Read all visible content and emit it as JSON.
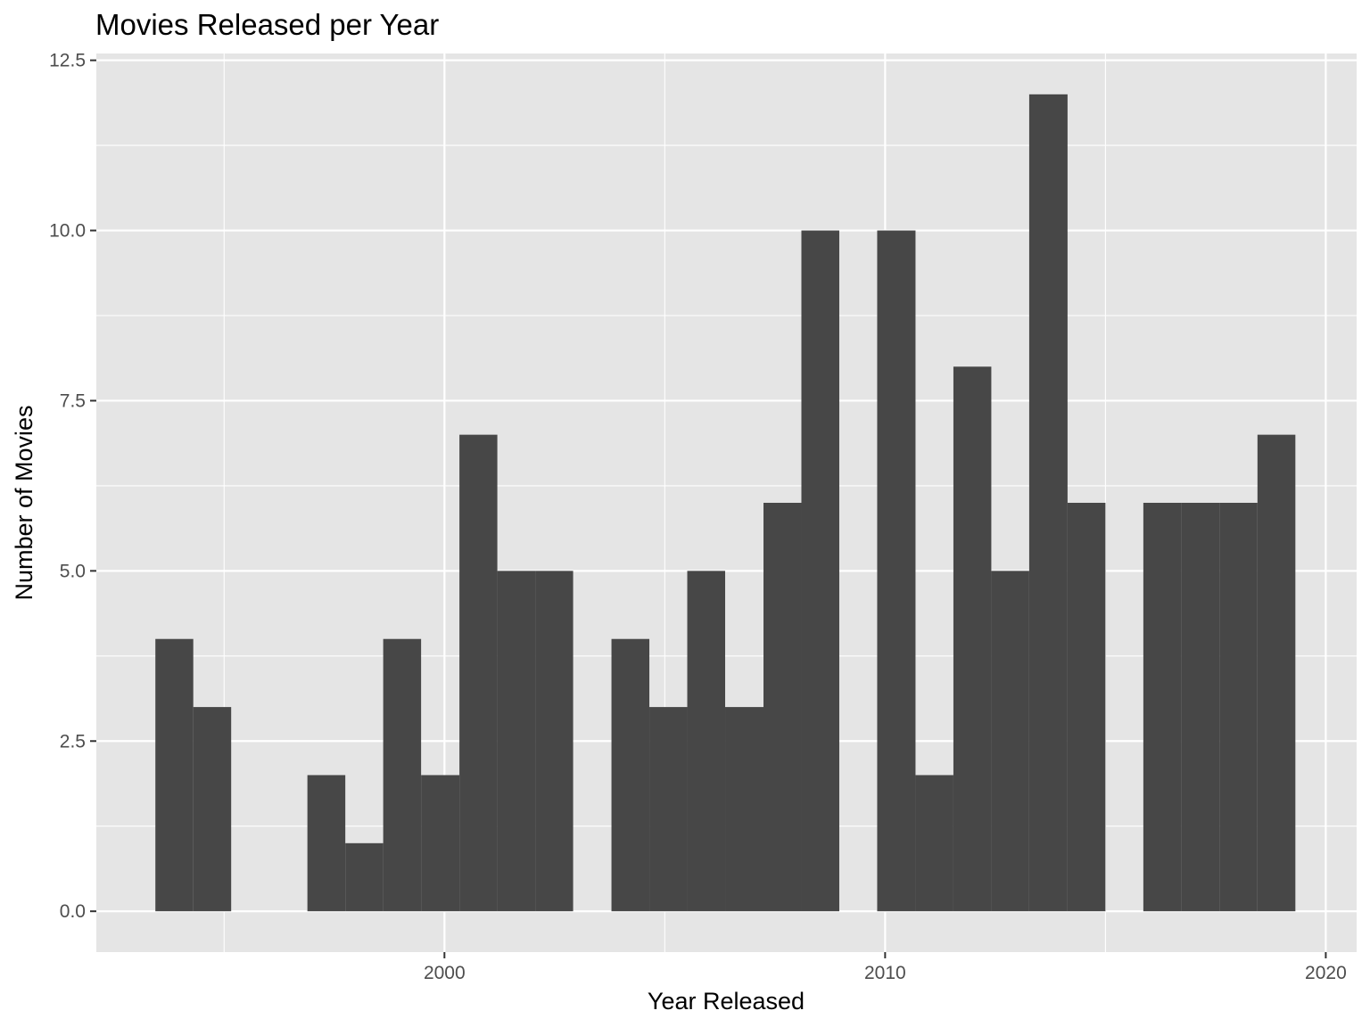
{
  "chart_data": {
    "type": "histogram",
    "title": "Movies Released per Year",
    "xlabel": "Year Released",
    "ylabel": "Number of Movies",
    "x_range": [
      1992.1,
      2020.7
    ],
    "y_range": [
      -0.6,
      12.6
    ],
    "x_ticks": [
      2000,
      2010,
      2020
    ],
    "x_tick_labels": [
      "2000",
      "2010",
      "2020"
    ],
    "y_ticks": [
      0,
      2.5,
      5,
      7.5,
      10,
      12.5
    ],
    "y_tick_labels": [
      "0.0",
      "2.5",
      "5.0",
      "7.5",
      "10.0",
      "12.5"
    ],
    "bin_width": 0.862,
    "bins": [
      {
        "start": 1993.44,
        "end": 1994.3,
        "count": 4
      },
      {
        "start": 1994.3,
        "end": 1995.16,
        "count": 3
      },
      {
        "start": 1995.16,
        "end": 1996.02,
        "count": 0
      },
      {
        "start": 1996.02,
        "end": 1996.89,
        "count": 0
      },
      {
        "start": 1996.89,
        "end": 1997.75,
        "count": 2
      },
      {
        "start": 1997.75,
        "end": 1998.61,
        "count": 1
      },
      {
        "start": 1998.61,
        "end": 1999.47,
        "count": 4
      },
      {
        "start": 1999.47,
        "end": 2000.34,
        "count": 2
      },
      {
        "start": 2000.34,
        "end": 2001.2,
        "count": 7
      },
      {
        "start": 2001.2,
        "end": 2002.06,
        "count": 5
      },
      {
        "start": 2002.06,
        "end": 2002.92,
        "count": 5
      },
      {
        "start": 2002.92,
        "end": 2003.79,
        "count": 0
      },
      {
        "start": 2003.79,
        "end": 2004.65,
        "count": 4
      },
      {
        "start": 2004.65,
        "end": 2005.51,
        "count": 3
      },
      {
        "start": 2005.51,
        "end": 2006.37,
        "count": 5
      },
      {
        "start": 2006.37,
        "end": 2007.24,
        "count": 3
      },
      {
        "start": 2007.24,
        "end": 2008.1,
        "count": 6
      },
      {
        "start": 2008.1,
        "end": 2008.96,
        "count": 10
      },
      {
        "start": 2008.96,
        "end": 2009.82,
        "count": 0
      },
      {
        "start": 2009.82,
        "end": 2010.69,
        "count": 10
      },
      {
        "start": 2010.69,
        "end": 2011.55,
        "count": 2
      },
      {
        "start": 2011.55,
        "end": 2012.41,
        "count": 8
      },
      {
        "start": 2012.41,
        "end": 2013.27,
        "count": 5
      },
      {
        "start": 2013.27,
        "end": 2014.14,
        "count": 12
      },
      {
        "start": 2014.14,
        "end": 2015.0,
        "count": 6
      },
      {
        "start": 2015.0,
        "end": 2015.86,
        "count": 0
      },
      {
        "start": 2015.86,
        "end": 2016.72,
        "count": 6
      },
      {
        "start": 2016.72,
        "end": 2017.59,
        "count": 6
      },
      {
        "start": 2017.59,
        "end": 2018.45,
        "count": 6
      },
      {
        "start": 2018.45,
        "end": 2019.31,
        "count": 7
      }
    ],
    "grid": true,
    "bar_color": "#474747",
    "panel_background": "#e5e5e5",
    "grid_color": "#ffffff"
  }
}
